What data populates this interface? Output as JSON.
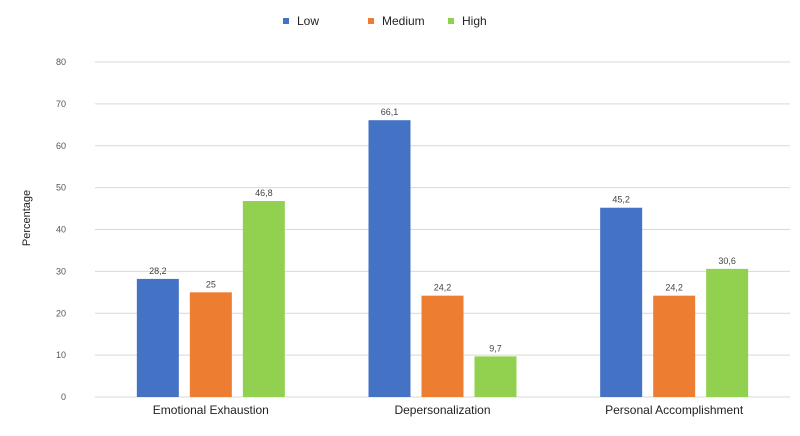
{
  "chart_data": {
    "type": "bar",
    "title": "",
    "xlabel": "",
    "ylabel": "Percentage",
    "ylim": [
      0,
      80
    ],
    "yticks": [
      0,
      10,
      20,
      30,
      40,
      50,
      60,
      70,
      80
    ],
    "grid": true,
    "legend_position": "top-center",
    "categories": [
      "Emotional Exhaustion",
      "Depersonalization",
      "Personal Accomplishment"
    ],
    "series": [
      {
        "name": "Low",
        "color": "#4472c4",
        "values": [
          28.2,
          66.1,
          45.2
        ],
        "labels": [
          "28,2",
          "66,1",
          "45,2"
        ]
      },
      {
        "name": "Medium",
        "color": "#ed7d31",
        "values": [
          25,
          24.2,
          24.2
        ],
        "labels": [
          "25",
          "24,2",
          "24,2"
        ]
      },
      {
        "name": "High",
        "color": "#92d050",
        "values": [
          46.8,
          9.7,
          30.6
        ],
        "labels": [
          "46,8",
          "9,7",
          "30,6"
        ]
      }
    ]
  }
}
